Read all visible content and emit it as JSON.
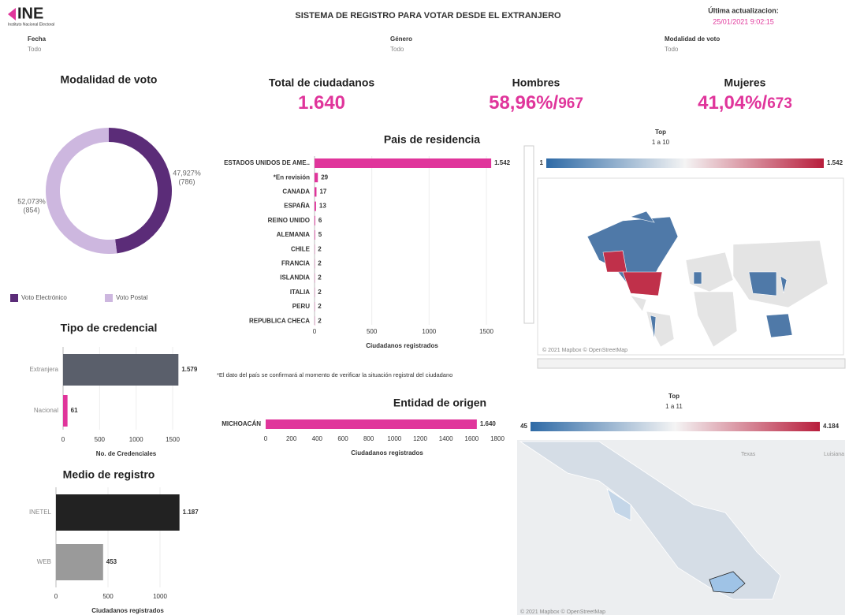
{
  "header": {
    "logo": "INE",
    "logo_sub": "Instituto Nacional Electoral",
    "title": "SISTEMA DE REGISTRO PARA VOTAR DESDE EL EXTRANJERO",
    "updated_label": "Última actualizacion:",
    "updated": "25/01/2021 9:02:15"
  },
  "filters": [
    {
      "label": "Fecha",
      "value": "Todo"
    },
    {
      "label": "Género",
      "value": "Todo"
    },
    {
      "label": "Modalidad de voto",
      "value": "Todo"
    }
  ],
  "kpis": [
    {
      "label": "Total de ciudadanos",
      "percent": "1.640"
    },
    {
      "label": "Hombres",
      "percent": "58,96%",
      "separator": "/",
      "count": "967"
    },
    {
      "label": "Mujeres",
      "percent": "41,04%",
      "separator": "/",
      "count": "673"
    }
  ],
  "chart_data": [
    {
      "type": "pie",
      "title": "Modalidad de voto",
      "categories": [
        "Voto Electrónico",
        "Voto Postal"
      ],
      "values": [
        47.927,
        52.073
      ],
      "value_labels": [
        "47,927%",
        "52,073%"
      ],
      "count_labels": [
        "(786)",
        "(854)"
      ],
      "colors": [
        "#5b2c78",
        "#cdb7df"
      ]
    },
    {
      "type": "hbar",
      "title": "Tipo de credencial",
      "categories": [
        "Extranjera",
        "Nacional"
      ],
      "values": [
        1579,
        61
      ],
      "value_labels": [
        "1.579",
        "61"
      ],
      "colors": [
        "#5a5f6b",
        "#e0359b"
      ],
      "xlim": [
        0,
        1650
      ],
      "xticks": [
        0,
        500,
        1000,
        1500
      ],
      "xlabel": "No. de Credenciales"
    },
    {
      "type": "hbar",
      "title": "Medio de registro",
      "categories": [
        "INETEL",
        "WEB"
      ],
      "values": [
        1187,
        453
      ],
      "value_labels": [
        "1.187",
        "453"
      ],
      "colors": [
        "#222222",
        "#9a9a9a"
      ],
      "xlim": [
        0,
        1200
      ],
      "xticks": [
        0,
        500,
        1000
      ],
      "xlabel": "Ciudadanos registrados"
    },
    {
      "type": "hbar",
      "title": "Pais de residencia",
      "categories": [
        "ESTADOS UNIDOS DE AME..",
        "*En revisión",
        "CANADA",
        "ESPAÑA",
        "REINO UNIDO",
        "ALEMANIA",
        "CHILE",
        "FRANCIA",
        "ISLANDIA",
        "ITALIA",
        "PERU",
        "REPUBLICA CHECA"
      ],
      "values": [
        1542,
        29,
        17,
        13,
        6,
        5,
        2,
        2,
        2,
        2,
        2,
        2
      ],
      "value_labels": [
        "1.542",
        "29",
        "17",
        "13",
        "6",
        "5",
        "2",
        "2",
        "2",
        "2",
        "2",
        "2"
      ],
      "color": "#e0359b",
      "xlim": [
        0,
        1550
      ],
      "xticks": [
        0,
        500,
        1000,
        1500
      ],
      "xlabel": "Ciudadanos registrados",
      "footnote": "*El dato del país se confirmará al momento de verificar la situación registral del ciudadano"
    },
    {
      "type": "hbar",
      "title": "Entidad de origen",
      "categories": [
        "MICHOACÁN"
      ],
      "values": [
        1640
      ],
      "value_labels": [
        "1.640"
      ],
      "color": "#e0359b",
      "xlim": [
        0,
        1800
      ],
      "xticks": [
        0,
        200,
        400,
        600,
        800,
        1000,
        1200,
        1400,
        1600,
        1800
      ],
      "xlabel": "Ciudadanos registrados"
    }
  ],
  "maps": [
    {
      "legend_title": "Top",
      "legend_subtitle": "1 a 10",
      "min": "1",
      "max": "1.542",
      "attribution": "© 2021 Mapbox © OpenStreetMap"
    },
    {
      "legend_title": "Top",
      "legend_subtitle": "1 a 11",
      "min": "45",
      "max": "4.184",
      "labels": [
        "Texas",
        "Luisiana"
      ],
      "attribution": "© 2021 Mapbox © OpenStreetMap"
    }
  ]
}
